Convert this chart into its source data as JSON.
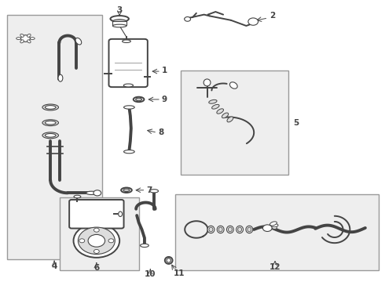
{
  "bg_color": "#ffffff",
  "line_color": "#444444",
  "parts_bg": "#eeeeee",
  "box_ec": "#999999",
  "label_fontsize": 7.5,
  "lw_thin": 0.8,
  "lw_med": 1.4,
  "lw_thick": 2.8,
  "boxes": {
    "4": [
      0.018,
      0.08,
      0.265,
      0.95
    ],
    "5": [
      0.47,
      0.38,
      0.75,
      0.75
    ],
    "6": [
      0.155,
      0.04,
      0.36,
      0.3
    ],
    "12": [
      0.455,
      0.04,
      0.985,
      0.31
    ]
  }
}
